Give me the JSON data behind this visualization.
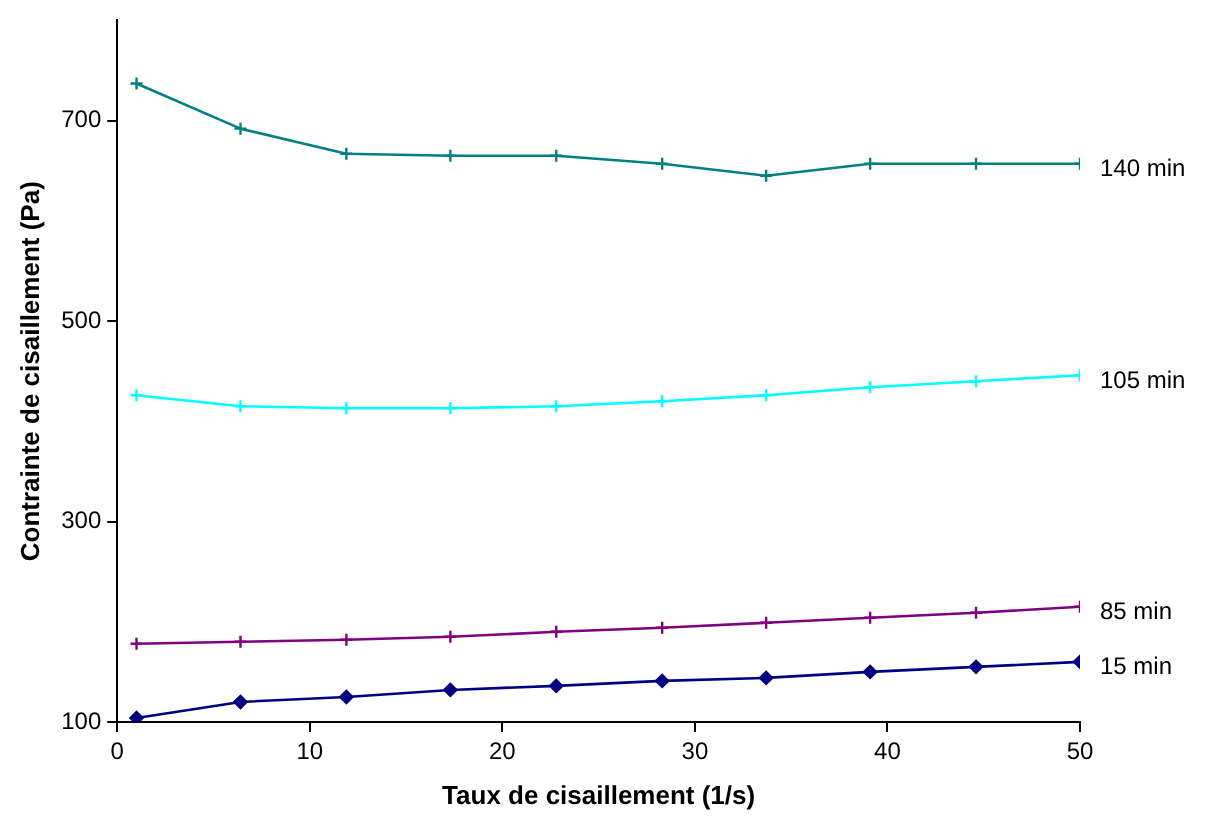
{
  "chart_data": {
    "type": "line",
    "xlabel": "Taux de cisaillement (1/s)",
    "ylabel": "Contrainte de cisaillement (Pa)",
    "x": [
      1,
      6.4,
      11.9,
      17.3,
      22.8,
      28.3,
      33.7,
      39.1,
      44.6,
      50
    ],
    "xlim": [
      0,
      50
    ],
    "xticks": [
      0,
      10,
      20,
      30,
      40,
      50
    ],
    "ylim": [
      100,
      800
    ],
    "yticks": [
      100,
      300,
      500,
      700
    ],
    "grid": false,
    "legend": false,
    "series": [
      {
        "name": "140 min",
        "color": "#008080",
        "marker": "cross",
        "values": [
          737,
          692,
          667,
          665,
          665,
          657,
          645,
          657,
          657,
          657
        ]
      },
      {
        "name": "105 min",
        "color": "#00ffff",
        "marker": "cross",
        "values": [
          426,
          415,
          413,
          413,
          415,
          420,
          426,
          434,
          440,
          446
        ]
      },
      {
        "name": "85 min",
        "color": "#800080",
        "marker": "cross",
        "values": [
          178,
          180,
          182,
          185,
          190,
          194,
          199,
          204,
          209,
          215
        ]
      },
      {
        "name": "15 min",
        "color": "#000080",
        "marker": "diamond",
        "values": [
          104,
          120,
          125,
          132,
          136,
          141,
          144,
          150,
          155,
          160
        ]
      }
    ]
  }
}
